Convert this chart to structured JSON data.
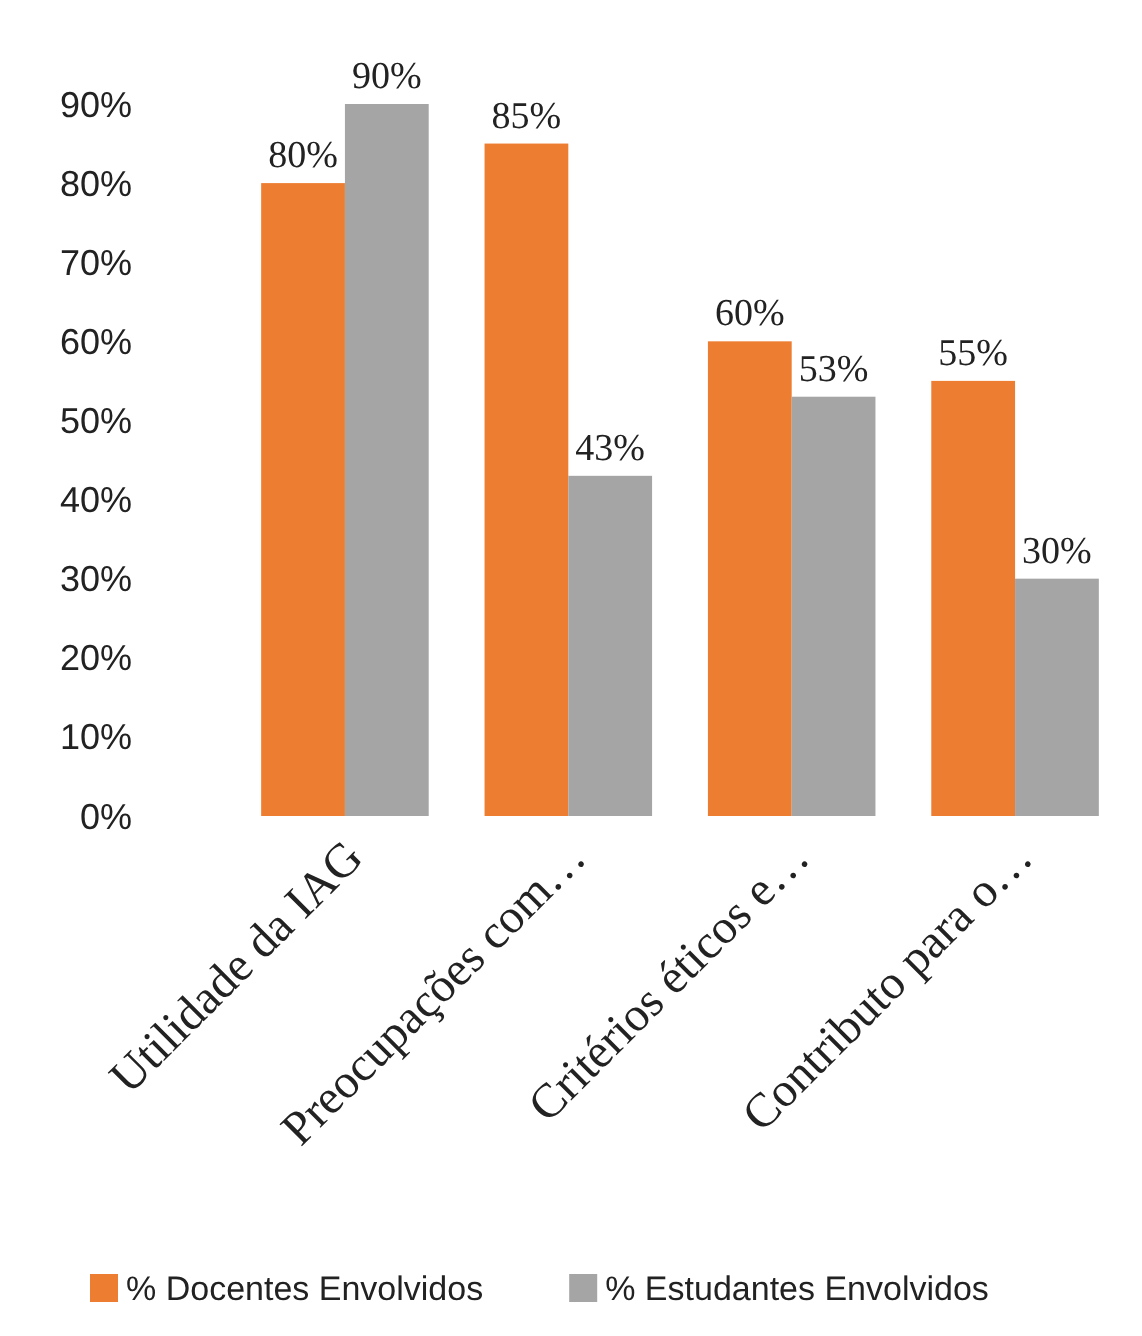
{
  "chart_data": {
    "type": "bar",
    "categories": [
      "Utilidade da IAG",
      "Preocupações com…",
      "Critérios éticos e…",
      "Contributo para o…"
    ],
    "series": [
      {
        "name": "% Docentes Envolvidos",
        "color": "#ed7d31",
        "values": [
          80,
          85,
          60,
          55
        ],
        "value_labels": [
          "80%",
          "85%",
          "60%",
          "55%"
        ]
      },
      {
        "name": "% Estudantes Envolvidos",
        "color": "#a5a5a5",
        "values": [
          90,
          43,
          53,
          30
        ],
        "value_labels": [
          "90%",
          "43%",
          "53%",
          "30%"
        ]
      }
    ],
    "ylim": [
      0,
      90
    ],
    "yticks": [
      {
        "value": 0,
        "label": "0%"
      },
      {
        "value": 10,
        "label": "10%"
      },
      {
        "value": 20,
        "label": "20%"
      },
      {
        "value": 30,
        "label": "30%"
      },
      {
        "value": 40,
        "label": "40%"
      },
      {
        "value": 50,
        "label": "50%"
      },
      {
        "value": 60,
        "label": "60%"
      },
      {
        "value": 70,
        "label": "70%"
      },
      {
        "value": 80,
        "label": "80%"
      },
      {
        "value": 90,
        "label": "90%"
      }
    ],
    "grid": false,
    "legend": "bottom"
  }
}
